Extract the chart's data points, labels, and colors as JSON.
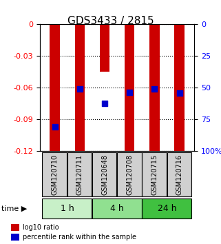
{
  "title": "GDS3433 / 2815",
  "samples": [
    "GSM120710",
    "GSM120711",
    "GSM120648",
    "GSM120708",
    "GSM120715",
    "GSM120716"
  ],
  "groups": [
    {
      "label": "1 h",
      "indices": [
        0,
        1
      ],
      "color": "#c8f0c8"
    },
    {
      "label": "4 h",
      "indices": [
        2,
        3
      ],
      "color": "#90e090"
    },
    {
      "label": "24 h",
      "indices": [
        4,
        5
      ],
      "color": "#40c040"
    }
  ],
  "log10_bar_top": [
    0,
    0,
    0,
    0,
    0,
    0
  ],
  "log10_bar_bottom": [
    -0.121,
    -0.121,
    -0.045,
    -0.121,
    -0.121,
    -0.121
  ],
  "percentile": [
    -0.097,
    -0.061,
    -0.075,
    -0.064,
    -0.061,
    -0.065
  ],
  "ylim_left": [
    0,
    -0.12
  ],
  "yticks_left": [
    0,
    -0.03,
    -0.06,
    -0.09,
    -0.12
  ],
  "yticks_right": [
    0,
    25,
    50,
    75,
    100
  ],
  "bar_color": "#cc0000",
  "dot_color": "#0000cc",
  "bar_width": 0.4,
  "dot_size": 40,
  "legend_items": [
    "log10 ratio",
    "percentile rank within the sample"
  ],
  "bg_color": "#ffffff",
  "time_label": "time"
}
